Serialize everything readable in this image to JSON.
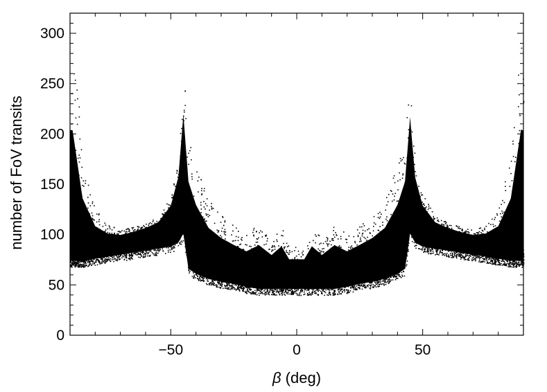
{
  "chart_data": {
    "type": "scatter",
    "title": "",
    "xlabel_symbol": "β",
    "xlabel_unit": "(deg)",
    "ylabel": "number of FoV transits",
    "xlim": [
      -90,
      90
    ],
    "ylim": [
      0,
      320
    ],
    "xticks": [
      -50,
      0,
      50
    ],
    "xtick_labels": [
      "−50",
      "0",
      "50"
    ],
    "yticks": [
      0,
      50,
      100,
      150,
      200,
      250,
      300
    ],
    "ytick_labels": [
      "0",
      "50",
      "100",
      "150",
      "200",
      "250",
      "300"
    ],
    "x_minor_step": 10,
    "y_minor_step": 10,
    "grid": false,
    "legend": "none",
    "marker_color": "#000000",
    "series": [
      {
        "description_points": {
          "x": [
            -89,
            -85,
            -80,
            -75,
            -70,
            -65,
            -60,
            -55,
            -50,
            -47,
            -45,
            -43,
            -40,
            -35,
            -30,
            -25,
            -20,
            -15,
            -10,
            -6,
            -3,
            0,
            3,
            6,
            10,
            15,
            20,
            25,
            30,
            35,
            40,
            43,
            45,
            47,
            50,
            55,
            60,
            65,
            70,
            75,
            80,
            85,
            89
          ],
          "y_upper": [
            305,
            180,
            125,
            110,
            105,
            108,
            112,
            118,
            140,
            175,
            260,
            200,
            170,
            135,
            120,
            110,
            100,
            112,
            95,
            110,
            88,
            88,
            88,
            110,
            95,
            112,
            100,
            110,
            120,
            135,
            170,
            200,
            255,
            175,
            140,
            118,
            112,
            108,
            105,
            110,
            125,
            180,
            305
          ],
          "y_center": [
            80,
            82,
            88,
            90,
            93,
            96,
            100,
            105,
            115,
            135,
            170,
            95,
            80,
            72,
            68,
            65,
            63,
            62,
            61,
            62,
            60,
            60,
            60,
            62,
            61,
            62,
            63,
            65,
            68,
            72,
            80,
            95,
            170,
            135,
            115,
            105,
            100,
            96,
            93,
            90,
            88,
            82,
            80
          ],
          "y_lower": [
            68,
            68,
            70,
            72,
            74,
            76,
            78,
            80,
            82,
            86,
            95,
            60,
            55,
            50,
            47,
            45,
            42,
            40,
            40,
            40,
            40,
            40,
            40,
            40,
            40,
            40,
            42,
            45,
            47,
            50,
            55,
            60,
            95,
            86,
            82,
            80,
            78,
            76,
            74,
            72,
            70,
            68,
            68
          ]
        }
      }
    ]
  }
}
